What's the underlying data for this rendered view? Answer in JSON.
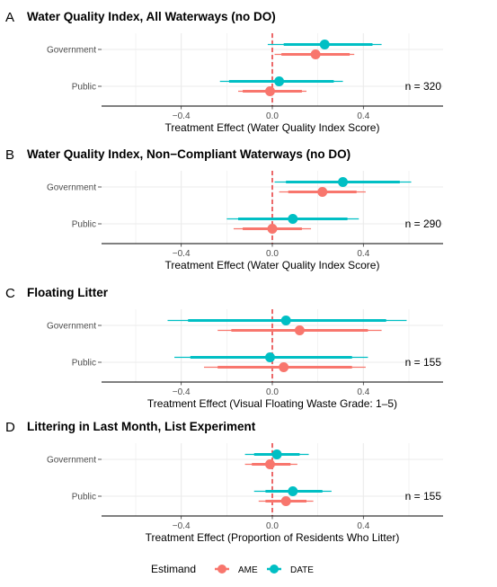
{
  "colors": {
    "AME": "#F8766D",
    "DATE": "#00BFC4",
    "zero_line": "#e41a1c",
    "grid": "#ebebeb",
    "axis": "#333333"
  },
  "legend": {
    "title": "Estimand",
    "items": [
      "AME",
      "DATE"
    ]
  },
  "chart_data": [
    {
      "letter": "A",
      "title": "Water Quality Index, All Waterways (no DO)",
      "xlabel": "Treatment Effect (Water Quality Index Score)",
      "n_label": "n = 320",
      "type": "forest",
      "xlim": [
        -0.75,
        0.75
      ],
      "xticks": [
        -0.4,
        0.0,
        0.4
      ],
      "tick_labels": [
        "−0.4",
        "0.0",
        "0.4"
      ],
      "rows": [
        {
          "category": "Government",
          "DATE": {
            "est": 0.23,
            "ci90": [
              0.05,
              0.44
            ],
            "ci95": [
              -0.02,
              0.48
            ]
          },
          "AME": {
            "est": 0.19,
            "ci90": [
              0.04,
              0.34
            ],
            "ci95": [
              0.01,
              0.36
            ]
          }
        },
        {
          "category": "Public",
          "DATE": {
            "est": 0.03,
            "ci90": [
              -0.19,
              0.27
            ],
            "ci95": [
              -0.23,
              0.31
            ]
          },
          "AME": {
            "est": -0.01,
            "ci90": [
              -0.13,
              0.13
            ],
            "ci95": [
              -0.15,
              0.15
            ]
          }
        }
      ]
    },
    {
      "letter": "B",
      "title": "Water Quality Index, Non−Compliant Waterways (no DO)",
      "xlabel": "Treatment Effect (Water Quality Index Score)",
      "n_label": "n = 290",
      "type": "forest",
      "xlim": [
        -0.75,
        0.75
      ],
      "xticks": [
        -0.4,
        0.0,
        0.4
      ],
      "tick_labels": [
        "−0.4",
        "0.0",
        "0.4"
      ],
      "rows": [
        {
          "category": "Government",
          "DATE": {
            "est": 0.31,
            "ci90": [
              0.06,
              0.56
            ],
            "ci95": [
              0.01,
              0.61
            ]
          },
          "AME": {
            "est": 0.22,
            "ci90": [
              0.07,
              0.37
            ],
            "ci95": [
              0.03,
              0.41
            ]
          }
        },
        {
          "category": "Public",
          "DATE": {
            "est": 0.09,
            "ci90": [
              -0.15,
              0.33
            ],
            "ci95": [
              -0.2,
              0.38
            ]
          },
          "AME": {
            "est": 0.0,
            "ci90": [
              -0.13,
              0.13
            ],
            "ci95": [
              -0.17,
              0.17
            ]
          }
        }
      ]
    },
    {
      "letter": "C",
      "title": "Floating Litter",
      "xlabel": "Treatment Effect (Visual Floating Waste Grade: 1–5)",
      "n_label": "n = 155",
      "type": "forest",
      "xlim": [
        -0.75,
        0.75
      ],
      "xticks": [
        -0.4,
        0.0,
        0.4
      ],
      "tick_labels": [
        "−0.4",
        "0.0",
        "0.4"
      ],
      "rows": [
        {
          "category": "Government",
          "DATE": {
            "est": 0.06,
            "ci90": [
              -0.37,
              0.5
            ],
            "ci95": [
              -0.46,
              0.59
            ]
          },
          "AME": {
            "est": 0.12,
            "ci90": [
              -0.18,
              0.42
            ],
            "ci95": [
              -0.24,
              0.48
            ]
          }
        },
        {
          "category": "Public",
          "DATE": {
            "est": -0.01,
            "ci90": [
              -0.36,
              0.35
            ],
            "ci95": [
              -0.43,
              0.42
            ]
          },
          "AME": {
            "est": 0.05,
            "ci90": [
              -0.24,
              0.35
            ],
            "ci95": [
              -0.3,
              0.41
            ]
          }
        }
      ]
    },
    {
      "letter": "D",
      "title": "Littering in Last Month, List Experiment",
      "xlabel": "Treatment Effect (Proportion of Residents Who Litter)",
      "n_label": "n = 155",
      "type": "forest",
      "xlim": [
        -0.75,
        0.75
      ],
      "xticks": [
        -0.4,
        0.0,
        0.4
      ],
      "tick_labels": [
        "−0.4",
        "0.0",
        "0.4"
      ],
      "rows": [
        {
          "category": "Government",
          "DATE": {
            "est": 0.02,
            "ci90": [
              -0.08,
              0.12
            ],
            "ci95": [
              -0.12,
              0.16
            ]
          },
          "AME": {
            "est": -0.01,
            "ci90": [
              -0.09,
              0.08
            ],
            "ci95": [
              -0.12,
              0.11
            ]
          }
        },
        {
          "category": "Public",
          "DATE": {
            "est": 0.09,
            "ci90": [
              -0.03,
              0.22
            ],
            "ci95": [
              -0.08,
              0.26
            ]
          },
          "AME": {
            "est": 0.06,
            "ci90": [
              -0.03,
              0.15
            ],
            "ci95": [
              -0.06,
              0.18
            ]
          }
        }
      ]
    }
  ]
}
